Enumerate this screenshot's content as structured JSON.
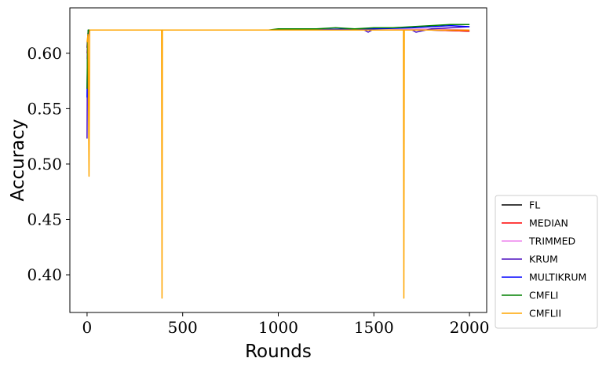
{
  "chart_data": {
    "type": "line",
    "xlabel": "Rounds",
    "ylabel": "Accuracy",
    "xlim": [
      -90,
      2090
    ],
    "ylim": [
      0.366,
      0.641
    ],
    "xticks": [
      0,
      500,
      1000,
      1500,
      2000
    ],
    "yticks": [
      0.4,
      0.45,
      0.5,
      0.55,
      0.6
    ],
    "xtick_labels": [
      "0",
      "500",
      "1000",
      "1500",
      "2000"
    ],
    "ytick_labels": [
      "0.40",
      "0.45",
      "0.50",
      "0.55",
      "0.60"
    ],
    "grid": false,
    "legend_position": "lower-right-outside",
    "series": [
      {
        "name": "FL",
        "color": "#000000",
        "x": [
          0,
          4,
          8,
          1000,
          1500,
          1800,
          2000
        ],
        "y": [
          0.605,
          0.615,
          0.621,
          0.621,
          0.621,
          0.621,
          0.62
        ]
      },
      {
        "name": "MEDIAN",
        "color": "#ff0000",
        "x": [
          0,
          4,
          8,
          1000,
          1500,
          1800,
          2000
        ],
        "y": [
          0.6,
          0.612,
          0.621,
          0.621,
          0.621,
          0.621,
          0.62
        ]
      },
      {
        "name": "TRIMMED",
        "color": "#ee82ee",
        "x": [
          0,
          4,
          8,
          1000,
          1500,
          1800,
          2000
        ],
        "y": [
          0.595,
          0.61,
          0.621,
          0.621,
          0.621,
          0.622,
          0.621
        ]
      },
      {
        "name": "KRUM",
        "color": "#4b0fbf",
        "x": [
          0,
          2,
          5,
          8,
          1000,
          1450,
          1470,
          1490,
          1700,
          1720,
          1800,
          1900,
          2000
        ],
        "y": [
          0.523,
          0.6,
          0.618,
          0.621,
          0.621,
          0.621,
          0.619,
          0.621,
          0.621,
          0.619,
          0.622,
          0.623,
          0.624
        ]
      },
      {
        "name": "MULTIKRUM",
        "color": "#0000ff",
        "x": [
          0,
          3,
          6,
          1000,
          1500,
          1700,
          1800,
          1900,
          2000
        ],
        "y": [
          0.56,
          0.61,
          0.621,
          0.621,
          0.622,
          0.623,
          0.624,
          0.625,
          0.624
        ]
      },
      {
        "name": "CMFLI",
        "color": "#008000",
        "x": [
          0,
          3,
          6,
          950,
          1000,
          1100,
          1200,
          1300,
          1400,
          1500,
          1600,
          1700,
          1800,
          1900,
          2000
        ],
        "y": [
          0.568,
          0.612,
          0.621,
          0.621,
          0.622,
          0.622,
          0.622,
          0.623,
          0.622,
          0.623,
          0.623,
          0.624,
          0.625,
          0.626,
          0.626
        ]
      },
      {
        "name": "CMFLII",
        "color": "#ffa500",
        "x": [
          0,
          5,
          10,
          14,
          390,
          392,
          394,
          1655,
          1657,
          1659,
          2000
        ],
        "y": [
          0.61,
          0.617,
          0.489,
          0.621,
          0.621,
          0.379,
          0.621,
          0.621,
          0.379,
          0.621,
          0.621
        ]
      }
    ]
  }
}
